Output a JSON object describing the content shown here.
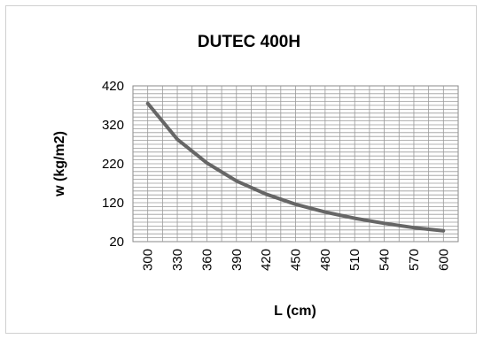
{
  "chart_data": {
    "type": "line",
    "title": "DUTEC 400H",
    "xlabel": "L (cm)",
    "ylabel": "w (kg/m2)",
    "x": [
      300,
      330,
      360,
      390,
      420,
      450,
      480,
      510,
      540,
      570,
      600
    ],
    "x_ticks": [
      "300",
      "330",
      "360",
      "390",
      "420",
      "450",
      "480",
      "510",
      "540",
      "570",
      "600"
    ],
    "y_ticks": [
      "420",
      "320",
      "220",
      "120",
      "20"
    ],
    "ylim": [
      20,
      420
    ],
    "grid": true,
    "legend": "none",
    "series": [
      {
        "values": [
          375,
          283,
          222,
          176,
          142,
          116,
          96,
          80,
          67,
          56,
          48
        ],
        "color": "#666666"
      }
    ]
  }
}
